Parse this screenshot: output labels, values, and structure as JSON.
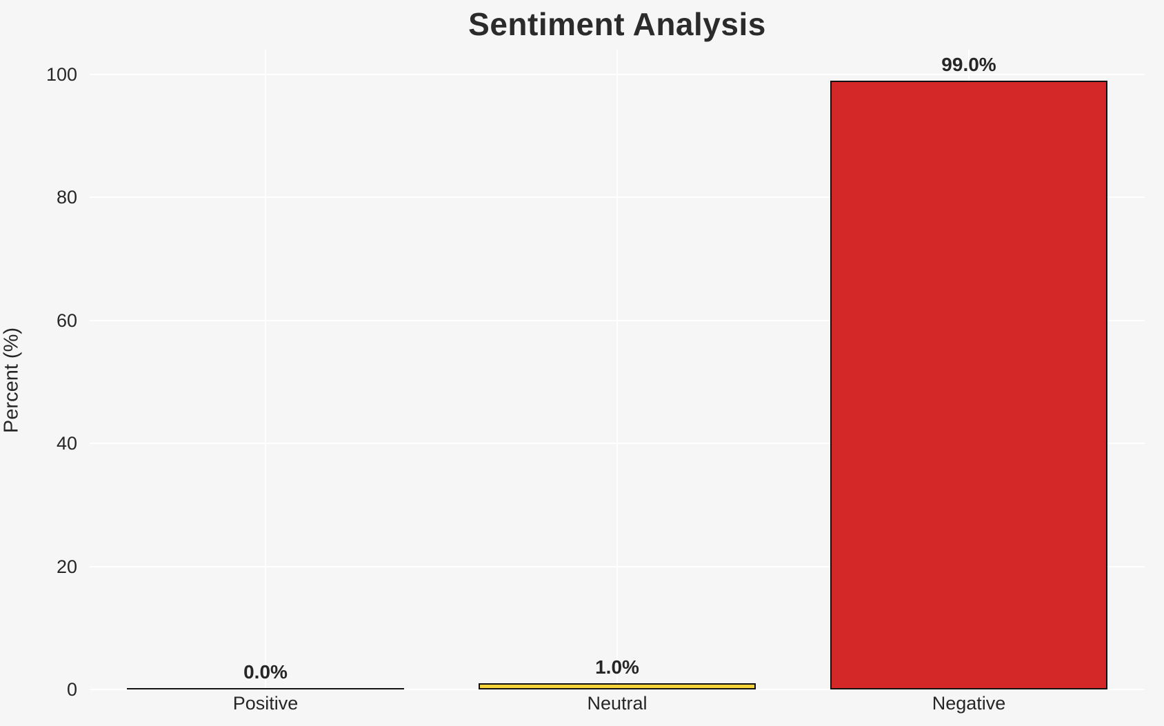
{
  "title": "Sentiment Analysis",
  "chart_data": {
    "type": "bar",
    "title": "Sentiment Analysis",
    "xlabel": "",
    "ylabel": "Percent (%)",
    "categories": [
      "Positive",
      "Neutral",
      "Negative"
    ],
    "values": [
      0.0,
      1.0,
      99.0
    ],
    "value_labels": [
      "0.0%",
      "1.0%",
      "99.0%"
    ],
    "bar_colors": [
      "none",
      "#f5d13a",
      "#d42728"
    ],
    "bar_edge_color": "#111111",
    "yticks": [
      0,
      20,
      40,
      60,
      80,
      100
    ],
    "ytick_labels": [
      "0",
      "20",
      "40",
      "60",
      "80",
      "100"
    ],
    "ylim": [
      0,
      104
    ],
    "grid": true,
    "grid_color": "#ffffff",
    "background_color": "#f6f6f6",
    "text_color": "#262626",
    "title_color": "#2b2b2b",
    "legend": "none"
  }
}
